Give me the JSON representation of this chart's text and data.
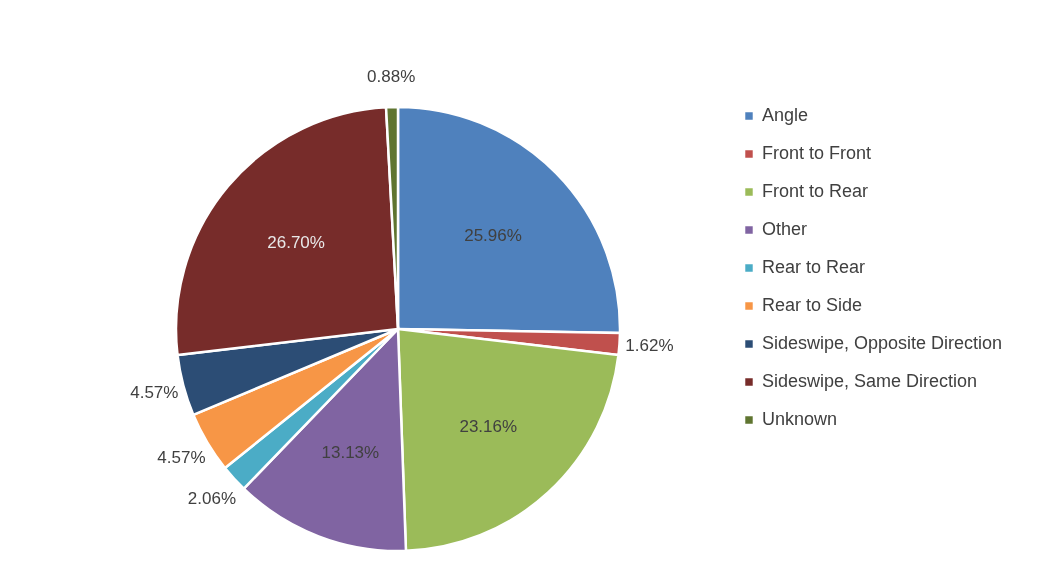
{
  "chart_data": {
    "type": "pie",
    "categories": [
      "Angle",
      "Front to Front",
      "Front to Rear",
      "Other",
      "Rear to Rear",
      "Rear to Side",
      "Sideswipe, Opposite Direction",
      "Sideswipe, Same Direction",
      "Unknown"
    ],
    "values": [
      25.96,
      1.62,
      23.16,
      13.13,
      2.06,
      4.57,
      4.57,
      26.7,
      0.88
    ],
    "value_labels": [
      "25.96%",
      "1.62%",
      "23.16%",
      "13.13%",
      "2.06%",
      "4.57%",
      "4.57%",
      "26.70%",
      "0.88%"
    ],
    "colors": [
      "#4f81bd",
      "#c0504d",
      "#9bbb59",
      "#8064a2",
      "#4bacc6",
      "#f79646",
      "#2c4d75",
      "#772c2a",
      "#5f7530"
    ],
    "legend": "right"
  }
}
